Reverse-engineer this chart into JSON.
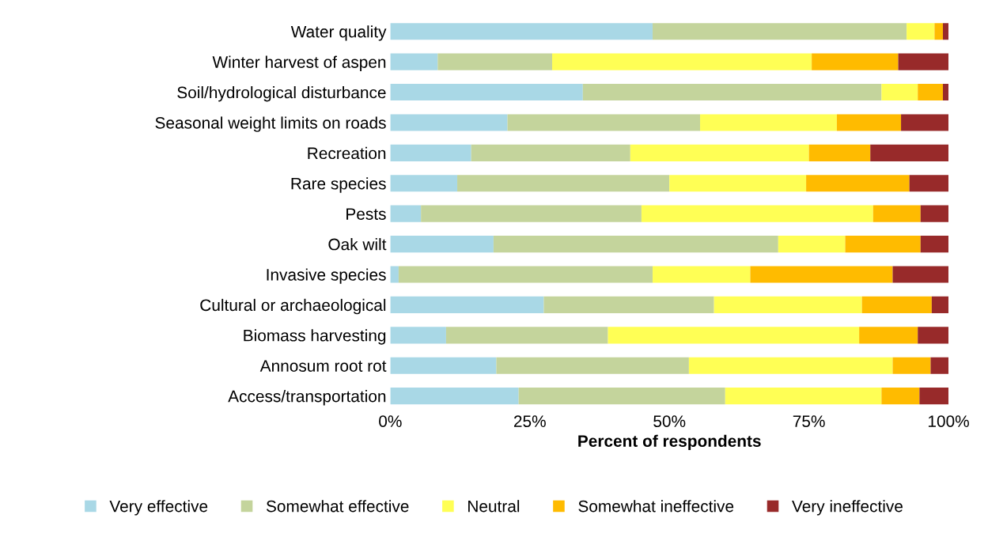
{
  "chart_data": {
    "type": "bar",
    "orientation": "horizontal",
    "stacked": true,
    "xlabel": "Percent of respondents",
    "categories": [
      "Water quality",
      "Winter harvest of aspen",
      "Soil/hydrological disturbance",
      "Seasonal weight limits on roads",
      "Recreation",
      "Rare species",
      "Pests",
      "Oak wilt",
      "Invasive species",
      "Cultural or archaeological",
      "Biomass harvesting",
      "Annosum root rot",
      "Access/transportation"
    ],
    "series": [
      {
        "name": "Very effective",
        "color": "#a9d8e6",
        "values": [
          47,
          8.5,
          34.5,
          21,
          14.5,
          12,
          5.5,
          18.5,
          1.5,
          27.5,
          10,
          19,
          23
        ]
      },
      {
        "name": "Somewhat effective",
        "color": "#c4d49c",
        "values": [
          45.5,
          20.5,
          53.5,
          34.5,
          28.5,
          38,
          39.5,
          51,
          45.5,
          30.5,
          29,
          34.5,
          37
        ]
      },
      {
        "name": "Neutral",
        "color": "#ffff55",
        "values": [
          5,
          46.5,
          6.5,
          24.5,
          32,
          24.5,
          41.5,
          12,
          17.5,
          26.5,
          45,
          36.5,
          28
        ]
      },
      {
        "name": "Somewhat ineffective",
        "color": "#ffbb00",
        "values": [
          1.5,
          15.5,
          4.5,
          11.5,
          11,
          18.5,
          8.5,
          13.5,
          25.5,
          12.5,
          10.5,
          6.8,
          6.8
        ]
      },
      {
        "name": "Very ineffective",
        "color": "#982a2a",
        "values": [
          1,
          9,
          1,
          8.5,
          14,
          7,
          5,
          5,
          10,
          3,
          5.5,
          3.2,
          5.2
        ]
      }
    ],
    "xlim": [
      0,
      100
    ],
    "xticks": [
      {
        "value": 0,
        "label": "0%"
      },
      {
        "value": 25,
        "label": "25%"
      },
      {
        "value": 50,
        "label": "50%"
      },
      {
        "value": 75,
        "label": "75%"
      },
      {
        "value": 100,
        "label": "100%"
      }
    ],
    "grid": false,
    "legend": "bottom"
  }
}
